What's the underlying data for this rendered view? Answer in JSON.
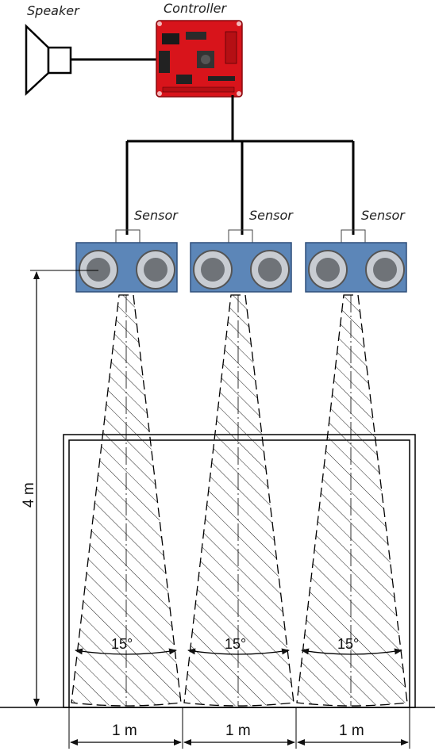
{
  "labels": {
    "speaker": "Speaker",
    "controller": "Controller",
    "sensors": [
      "Sensor",
      "Sensor",
      "Sensor"
    ]
  },
  "dimensions": {
    "height": "4 m",
    "widths": [
      "1 m",
      "1 m",
      "1 m"
    ],
    "angles": [
      "15°",
      "15°",
      "15°"
    ]
  },
  "colors": {
    "board": "#d8141b",
    "sensor_board": "#5c86b8",
    "line": "#000000"
  }
}
